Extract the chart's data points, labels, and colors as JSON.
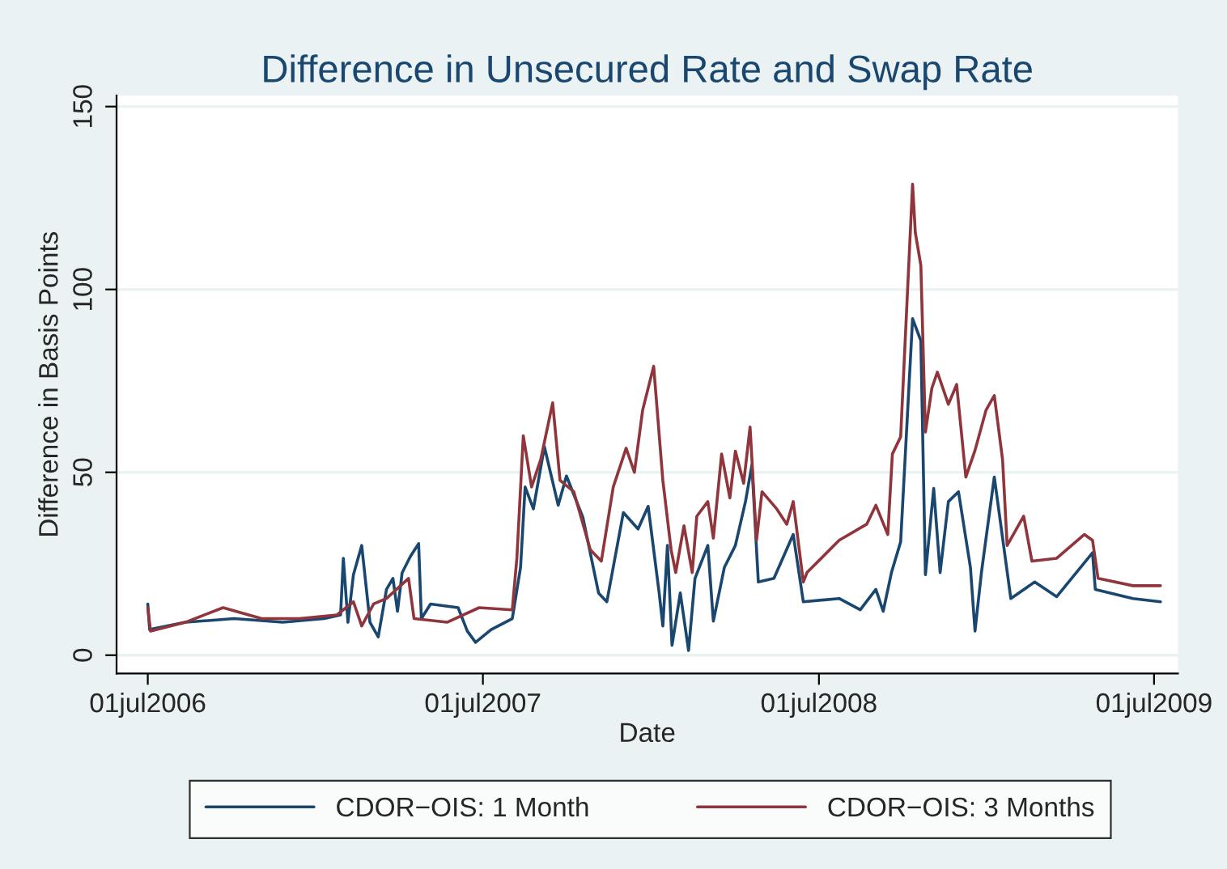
{
  "chart_data": {
    "type": "line",
    "title": "Difference in Unsecured Rate and Swap Rate",
    "xlabel": "Date",
    "ylabel": "Difference in Basis Points",
    "xlim": [
      "2006-05-28",
      "2009-07-27"
    ],
    "ylim": [
      -5,
      153
    ],
    "yticks": [
      0,
      50,
      100,
      150
    ],
    "xticks": [
      {
        "value": "2006-07-01",
        "label": "01jul2006"
      },
      {
        "value": "2007-07-01",
        "label": "01jul2007"
      },
      {
        "value": "2008-07-01",
        "label": "01jul2008"
      },
      {
        "value": "2009-07-01",
        "label": "01jul2009"
      }
    ],
    "grid": "y",
    "legend": "bottom",
    "series": [
      {
        "name": "CDOR−OIS: 1 Month",
        "color": "#1a476f",
        "x": [
          "2006-07-01",
          "2006-07-03",
          "2006-08-11",
          "2006-10-03",
          "2006-11-25",
          "2007-01-09",
          "2007-01-27",
          "2007-01-30",
          "2007-02-04",
          "2007-02-10",
          "2007-02-19",
          "2007-02-28",
          "2007-03-09",
          "2007-03-18",
          "2007-03-25",
          "2007-03-30",
          "2007-04-04",
          "2007-04-13",
          "2007-04-22",
          "2007-04-25",
          "2007-05-05",
          "2007-06-04",
          "2007-06-14",
          "2007-06-23",
          "2007-07-10",
          "2007-08-02",
          "2007-08-11",
          "2007-08-16",
          "2007-08-25",
          "2007-09-06",
          "2007-09-21",
          "2007-09-30",
          "2007-10-18",
          "2007-11-04",
          "2007-11-13",
          "2007-12-01",
          "2007-12-17",
          "2007-12-28",
          "2008-01-09",
          "2008-01-13",
          "2008-01-18",
          "2008-01-23",
          "2008-02-01",
          "2008-02-10",
          "2008-02-17",
          "2008-03-02",
          "2008-03-08",
          "2008-03-20",
          "2008-04-01",
          "2008-04-12",
          "2008-04-19",
          "2008-04-26",
          "2008-05-13",
          "2008-06-03",
          "2008-06-14",
          "2008-07-23",
          "2008-08-15",
          "2008-09-01",
          "2008-09-09",
          "2008-09-18",
          "2008-09-28",
          "2008-10-11",
          "2008-10-20",
          "2008-10-25",
          "2008-11-03",
          "2008-11-10",
          "2008-11-19",
          "2008-11-30",
          "2008-12-13",
          "2008-12-18",
          "2008-12-25",
          "2009-01-08",
          "2009-01-26",
          "2009-02-21",
          "2009-03-17",
          "2009-04-25",
          "2009-04-28",
          "2009-06-08",
          "2009-07-08"
        ],
        "values": [
          14,
          7,
          9,
          10,
          9,
          10,
          11,
          26.5,
          9,
          22,
          30,
          9,
          5,
          18,
          21,
          12,
          22.5,
          27,
          30.5,
          10,
          14,
          13,
          6.6,
          3.5,
          7,
          10,
          24,
          46,
          40,
          57,
          41,
          49,
          37.6,
          17,
          14.6,
          39,
          34.5,
          40.7,
          17,
          8,
          30,
          2.7,
          17,
          1.3,
          21,
          30,
          9.3,
          24,
          30,
          42,
          52,
          20,
          21,
          33,
          14.6,
          15.5,
          12.4,
          18,
          12,
          22.6,
          31,
          92,
          86,
          22,
          45.6,
          22.6,
          42,
          44.7,
          24,
          6.6,
          22.6,
          48.7,
          15.5,
          20,
          16,
          28,
          18,
          15.5,
          14.6
        ]
      },
      {
        "name": "CDOR−OIS: 3 Months",
        "color": "#90353b",
        "x": [
          "2006-07-01",
          "2006-07-04",
          "2006-08-11",
          "2006-09-21",
          "2006-11-02",
          "2006-12-13",
          "2007-01-23",
          "2007-02-10",
          "2007-02-19",
          "2007-03-04",
          "2007-03-18",
          "2007-04-11",
          "2007-04-17",
          "2007-05-23",
          "2007-06-27",
          "2007-08-02",
          "2007-08-07",
          "2007-08-14",
          "2007-08-23",
          "2007-09-02",
          "2007-09-15",
          "2007-09-23",
          "2007-10-08",
          "2007-10-26",
          "2007-11-07",
          "2007-11-20",
          "2007-12-04",
          "2007-12-13",
          "2007-12-22",
          "2008-01-03",
          "2008-01-13",
          "2008-01-22",
          "2008-01-27",
          "2008-02-05",
          "2008-02-14",
          "2008-02-19",
          "2008-03-02",
          "2008-03-08",
          "2008-03-17",
          "2008-03-26",
          "2008-04-01",
          "2008-04-10",
          "2008-04-17",
          "2008-04-24",
          "2008-04-30",
          "2008-05-16",
          "2008-05-27",
          "2008-06-03",
          "2008-06-14",
          "2008-06-18",
          "2008-07-23",
          "2008-08-22",
          "2008-09-01",
          "2008-09-14",
          "2008-09-19",
          "2008-09-28",
          "2008-10-11",
          "2008-10-14",
          "2008-10-20",
          "2008-10-25",
          "2008-11-01",
          "2008-11-07",
          "2008-11-19",
          "2008-11-28",
          "2008-12-08",
          "2008-12-18",
          "2008-12-30",
          "2009-01-08",
          "2009-01-17",
          "2009-01-22",
          "2009-02-09",
          "2009-02-18",
          "2009-03-17",
          "2009-04-16",
          "2009-04-25",
          "2009-05-01",
          "2009-06-08",
          "2009-07-08"
        ],
        "values": [
          13,
          6.6,
          9,
          13,
          10,
          10,
          11,
          14.6,
          8,
          14,
          15.5,
          21,
          10,
          9,
          13,
          12.4,
          26.5,
          60,
          46,
          53.5,
          69,
          47.8,
          44.7,
          28.8,
          25.7,
          46,
          56.6,
          50,
          67,
          79,
          47.8,
          28.8,
          22.6,
          35.4,
          22.6,
          38,
          42,
          32,
          55,
          43,
          55.8,
          47,
          62.4,
          31.4,
          44.7,
          40,
          35.8,
          42,
          20,
          22.6,
          31.4,
          35.8,
          41,
          33,
          55,
          59.7,
          128.8,
          115.5,
          106.6,
          61,
          73,
          77.4,
          68.6,
          74,
          48.7,
          56,
          67,
          71,
          53.5,
          30,
          38,
          25.7,
          26.5,
          33,
          31.4,
          21,
          19,
          19
        ]
      }
    ]
  }
}
